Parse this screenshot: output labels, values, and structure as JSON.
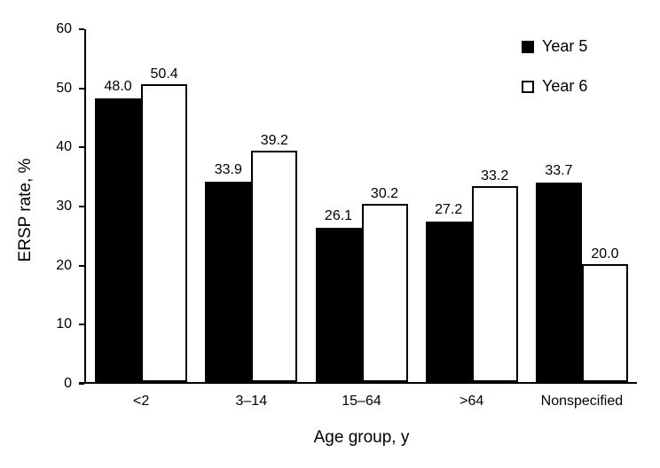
{
  "chart_data": {
    "type": "bar",
    "title": "",
    "xlabel": "Age group, y",
    "ylabel": "ERSP rate, %",
    "categories": [
      "<2",
      "3–14",
      "15–64",
      ">64",
      "Nonspecified"
    ],
    "series": [
      {
        "name": "Year 5",
        "fill": "#000000",
        "values": [
          48.0,
          33.9,
          26.1,
          27.2,
          33.7
        ]
      },
      {
        "name": "Year 6",
        "fill": "#ffffff",
        "values": [
          50.4,
          39.2,
          30.2,
          33.2,
          20.0
        ]
      }
    ],
    "ylim": [
      0,
      60
    ],
    "yticks": [
      0,
      10,
      20,
      30,
      40,
      50,
      60
    ],
    "grid": false,
    "value_labels": true,
    "value_label_format": "one-decimal",
    "legend_position": "top-right",
    "bar_outline_color": "#000000"
  },
  "colors": {
    "background": "#ffffff",
    "axis": "#000000",
    "text": "#000000",
    "year5_fill": "#000000",
    "year6_fill": "#ffffff"
  }
}
